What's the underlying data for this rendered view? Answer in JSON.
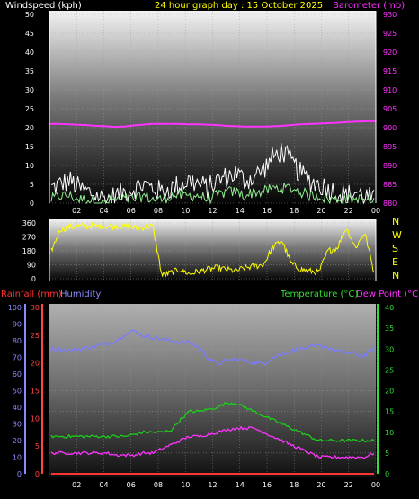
{
  "header": {
    "windspeed_label": "Windspeed (kph)",
    "title": "24 hour graph day : 15 October 2025",
    "barometer_label": "Barometer (mb)"
  },
  "colors": {
    "background": "#000000",
    "wind_gust": "#ffffff",
    "wind_avg": "#90ee90",
    "barometer": "#ff33ff",
    "wind_dir": "#ffff00",
    "rain": "#ff3333",
    "humidity": "#7b7bff",
    "temperature": "#19d019",
    "dew_point": "#ff33ff",
    "header_title": "#ffff00",
    "temp_axis": "#33dd33",
    "rain_axis": "#ff4444",
    "hum_axis": "#8a8aff",
    "tick": "#ffffff"
  },
  "chart_data": [
    {
      "id": "wind-barometer",
      "type": "line",
      "x_ticks": [
        "02",
        "04",
        "06",
        "08",
        "10",
        "12",
        "14",
        "16",
        "18",
        "20",
        "22",
        "00"
      ],
      "left_axis": {
        "label": "Windspeed (kph)",
        "ylim": [
          0,
          50
        ],
        "ticks": [
          "50",
          "45",
          "40",
          "35",
          "30",
          "25",
          "20",
          "15",
          "10",
          "5",
          "0"
        ]
      },
      "right_axis": {
        "label": "Barometer (mb)",
        "ylim": [
          880,
          930
        ],
        "ticks": [
          "930",
          "925",
          "920",
          "915",
          "910",
          "905",
          "900",
          "895",
          "890",
          "885",
          "880"
        ]
      },
      "series": [
        {
          "name": "Wind gust",
          "axis": "left",
          "values": [
            4,
            5,
            6,
            4,
            3,
            2,
            1,
            2,
            3,
            4,
            5,
            4,
            3,
            4,
            5,
            6,
            5,
            4,
            6,
            7,
            8,
            6,
            7,
            9,
            12,
            14,
            11,
            8,
            6,
            5,
            4,
            3,
            2,
            3,
            2,
            1
          ],
          "noise": 3
        },
        {
          "name": "Wind speed",
          "axis": "left",
          "values": [
            1,
            2,
            2,
            1,
            1,
            0,
            0,
            1,
            1,
            1,
            2,
            1,
            1,
            2,
            2,
            2,
            2,
            1,
            2,
            3,
            3,
            2,
            3,
            3,
            4,
            4,
            4,
            3,
            2,
            2,
            1,
            1,
            1,
            1,
            1,
            0
          ],
          "noise": 1.5
        },
        {
          "name": "Barometer",
          "axis": "right",
          "values": [
            901,
            901,
            900.9,
            900.8,
            900.7,
            900.5,
            900.4,
            900.2,
            900.3,
            900.6,
            900.8,
            901,
            901,
            901,
            901,
            900.9,
            900.9,
            900.8,
            900.7,
            900.5,
            900.4,
            900.3,
            900.3,
            900.3,
            900.4,
            900.5,
            900.7,
            900.9,
            901,
            901.1,
            901.2,
            901.3,
            901.5,
            901.6,
            901.7,
            901.7
          ]
        }
      ]
    },
    {
      "id": "wind-direction",
      "type": "scatter",
      "x_ticks": [
        "02",
        "04",
        "06",
        "08",
        "10",
        "12",
        "14",
        "16",
        "18",
        "20",
        "22",
        "00"
      ],
      "left_axis": {
        "ylim": [
          0,
          360
        ],
        "ticks": [
          "360",
          "270",
          "180",
          "90",
          "0"
        ]
      },
      "right_labels": [
        "N",
        "W",
        "S",
        "E",
        "N"
      ],
      "series": [
        {
          "name": "Wind direction",
          "values": [
            180,
            320,
            330,
            340,
            340,
            340,
            340,
            340,
            340,
            330,
            330,
            340,
            20,
            40,
            60,
            30,
            50,
            60,
            70,
            60,
            50,
            70,
            80,
            90,
            200,
            250,
            100,
            60,
            50,
            40,
            180,
            200,
            330,
            200,
            300,
            40
          ]
        }
      ]
    },
    {
      "id": "temp-rain-humidity",
      "type": "line",
      "x_ticks": [
        "02",
        "04",
        "06",
        "08",
        "10",
        "12",
        "14",
        "16",
        "18",
        "20",
        "22",
        "00"
      ],
      "left_axis_outer": {
        "label": "Humidity",
        "ylim": [
          0,
          100
        ],
        "ticks": [
          "100",
          "90",
          "80",
          "70",
          "60",
          "50",
          "40",
          "30",
          "20",
          "10",
          "0"
        ]
      },
      "left_axis_inner": {
        "label": "Rainfall (mm)",
        "ylim": [
          0,
          30
        ],
        "ticks": [
          "30",
          "25",
          "20",
          "15",
          "10",
          "5",
          "0"
        ]
      },
      "right_axis": {
        "label": "Temperature (°C)",
        "ylim": [
          0,
          40
        ],
        "ticks": [
          "40",
          "35",
          "30",
          "25",
          "20",
          "15",
          "10",
          "5",
          "0"
        ]
      },
      "dew_point_label": "Dew Point (°C)",
      "series": [
        {
          "name": "Humidity",
          "axis": "outer",
          "values": [
            75,
            75,
            74,
            75,
            76,
            77,
            78,
            80,
            84,
            86,
            83,
            82,
            81,
            80,
            79,
            79,
            76,
            70,
            66,
            68,
            69,
            68,
            67,
            66,
            70,
            72,
            74,
            75,
            76,
            77,
            76,
            74,
            73,
            72,
            71,
            76
          ]
        },
        {
          "name": "Temperature",
          "axis": "right",
          "values": [
            9,
            9,
            9,
            9,
            9,
            9,
            9,
            9,
            9,
            9.5,
            10,
            10,
            10,
            10.5,
            13,
            15,
            15,
            15.5,
            16,
            17,
            17,
            16,
            15,
            14,
            13,
            12,
            11,
            10,
            9,
            8,
            8,
            8,
            8,
            8,
            8,
            8
          ]
        },
        {
          "name": "Dew Point",
          "axis": "right",
          "values": [
            5,
            5,
            5,
            5,
            5,
            5,
            5,
            4.5,
            4.5,
            4.5,
            5,
            5,
            6,
            7,
            8,
            9,
            9,
            9.5,
            10,
            10.5,
            11,
            11,
            11,
            10,
            9,
            8,
            7,
            6,
            5,
            4,
            4,
            4,
            4,
            4,
            4,
            5
          ]
        },
        {
          "name": "Rainfall",
          "axis": "inner",
          "values": [
            0,
            0,
            0,
            0,
            0,
            0,
            0,
            0,
            0,
            0,
            0,
            0,
            0,
            0,
            0,
            0,
            0,
            0,
            0,
            0,
            0,
            0,
            0,
            0,
            0,
            0,
            0,
            0,
            0,
            0,
            0,
            0,
            0,
            0,
            0,
            0
          ]
        }
      ]
    }
  ],
  "bottom_header": {
    "rainfall_label": "Rainfall (mm)",
    "humidity_label": "Humidity",
    "temperature_label": "Temperature (°C)",
    "dew_point_label": "Dew Point (°C)"
  }
}
